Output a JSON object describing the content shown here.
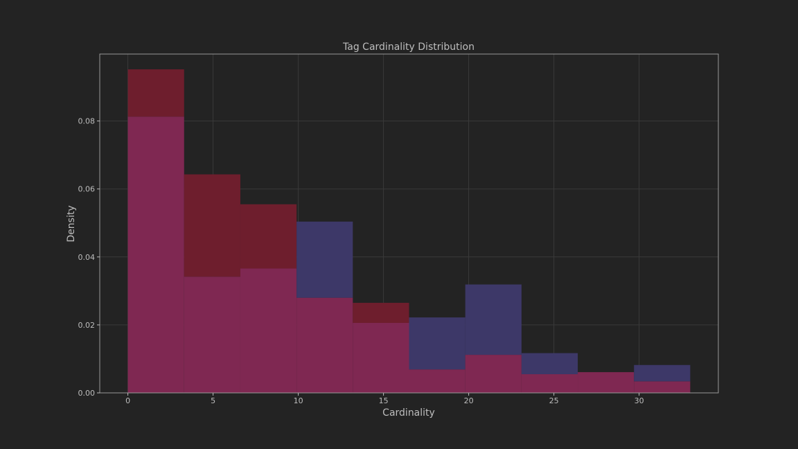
{
  "chart_data": {
    "type": "histogram",
    "title": "Tag Cardinality Distribution",
    "xlabel": "Cardinality",
    "ylabel": "Density",
    "xlim": [
      -1.65,
      34.65
    ],
    "ylim": [
      0,
      0.0997
    ],
    "xticks": [
      0,
      5,
      10,
      15,
      20,
      25,
      30
    ],
    "yticks": [
      0.0,
      0.02,
      0.04,
      0.06,
      0.08
    ],
    "ytick_labels": [
      "0.00",
      "0.02",
      "0.04",
      "0.06",
      "0.08"
    ],
    "grid": true,
    "bin_edges": [
      0,
      3.3,
      6.6,
      9.9,
      13.2,
      16.5,
      19.8,
      23.1,
      26.4,
      29.7,
      33.0
    ],
    "series": [
      {
        "color": "#d21e78",
        "values": [
          0.0813,
          0.0342,
          0.0366,
          0.028,
          0.0206,
          0.0069,
          0.0112,
          0.0055,
          0.0061,
          0.0034
        ]
      },
      {
        "color": "#6e1e2d",
        "values": [
          0.0952,
          0.0643,
          0.0555,
          0.028,
          0.0265,
          0.0069,
          0.0112,
          0.0055,
          0.0061,
          0.0034
        ]
      },
      {
        "color": "#3d3868",
        "values": [
          0.0813,
          0.0342,
          0.0366,
          0.0504,
          0.0206,
          0.0222,
          0.0319,
          0.0117,
          0.0061,
          0.0082
        ]
      }
    ],
    "colors": {
      "background": "#232323",
      "frame": "#9a9a9a",
      "grid": "#3a3a3a",
      "overlap": "#7f2852",
      "red_only": "#6e1e2d",
      "blue_only": "#3d3868"
    }
  }
}
